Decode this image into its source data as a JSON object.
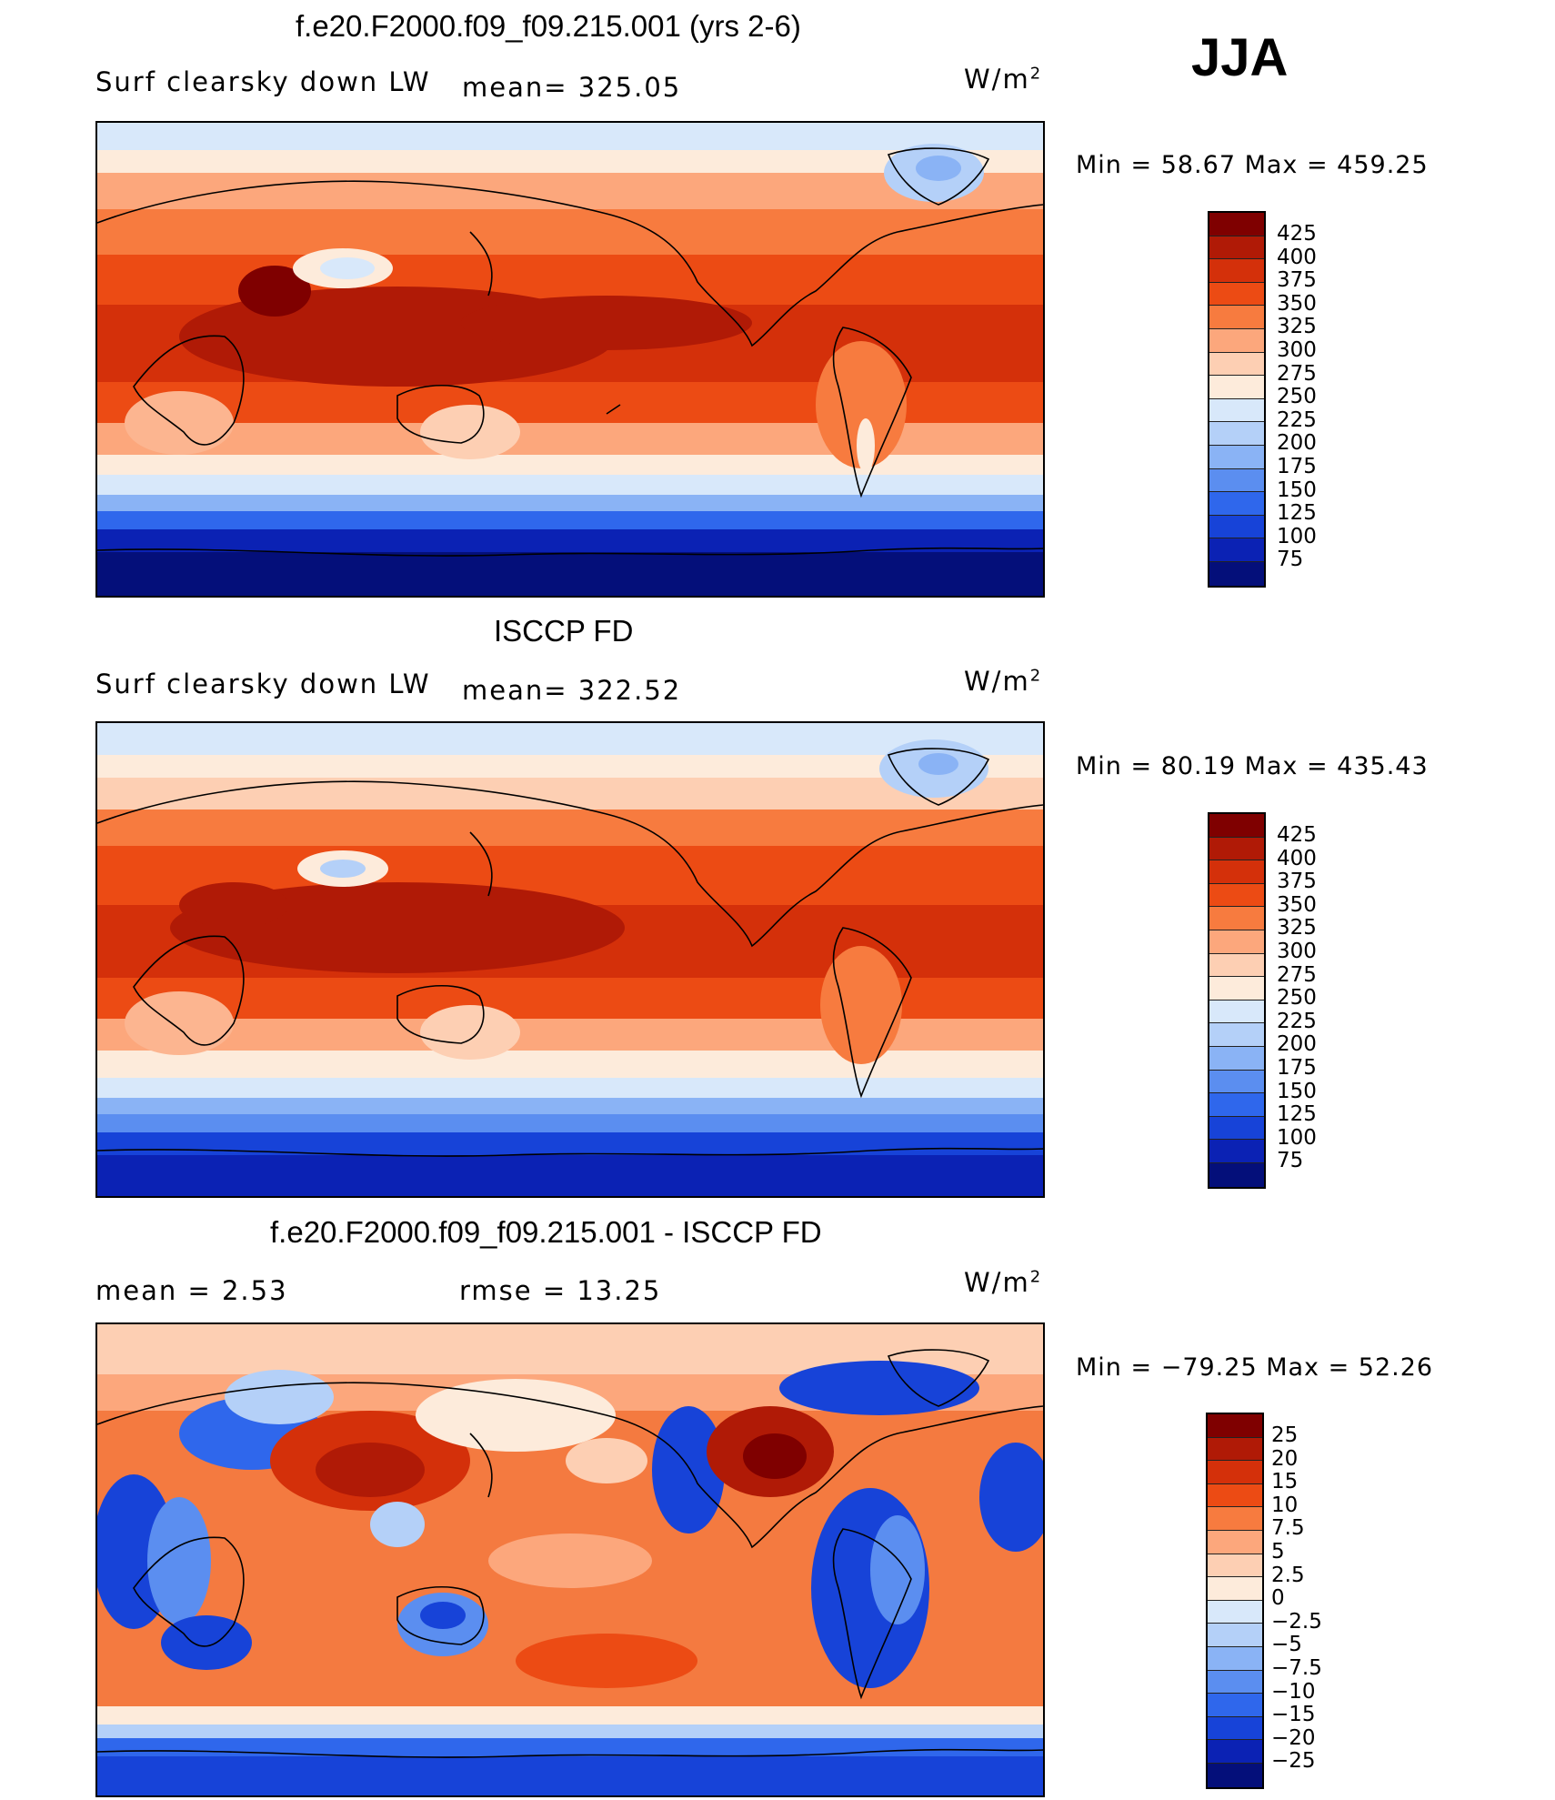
{
  "season": "JJA",
  "units": "W/m",
  "units_sup": "2",
  "panels": [
    {
      "title": "f.e20.F2000.f09_f09.215.001 (yrs 2-6)",
      "left_label": "Surf clearsky down LW",
      "mid_label": "mean=  325.05",
      "minmax": "Min =   58.67  Max  =  459.25",
      "colorbar_labels": [
        "425",
        "400",
        "375",
        "350",
        "325",
        "300",
        "275",
        "250",
        "225",
        "200",
        "175",
        "150",
        "125",
        "100",
        "75"
      ]
    },
    {
      "title": "ISCCP FD",
      "left_label": "Surf clearsky down LW",
      "mid_label": "mean=  322.52",
      "minmax": "Min =   80.19  Max  =  435.43",
      "colorbar_labels": [
        "425",
        "400",
        "375",
        "350",
        "325",
        "300",
        "275",
        "250",
        "225",
        "200",
        "175",
        "150",
        "125",
        "100",
        "75"
      ]
    },
    {
      "title": "f.e20.F2000.f09_f09.215.001 - ISCCP FD",
      "left_label": "mean =     2.53",
      "mid_label": "rmse  =    13.25",
      "minmax": "Min  = −79.25  Max  =    52.26",
      "colorbar_labels": [
        "25",
        "20",
        "15",
        "10",
        "7.5",
        "5",
        "2.5",
        "0",
        "−2.5",
        "−5",
        "−7.5",
        "−10",
        "−15",
        "−20",
        "−25"
      ]
    }
  ],
  "colors": {
    "palette": [
      "#7f0000",
      "#b01a06",
      "#d4300a",
      "#ec4b14",
      "#f77b3f",
      "#fca77c",
      "#fdcfb3",
      "#fdebdb",
      "#d8e8fa",
      "#b4d0f8",
      "#8ab3f5",
      "#5b8ef0",
      "#2f67ec",
      "#1743d8",
      "#0b22b4",
      "#040f7a"
    ],
    "ocean_warm": "#d94114",
    "ocean_mid": "#f47a40",
    "land_outline": "#000000"
  }
}
